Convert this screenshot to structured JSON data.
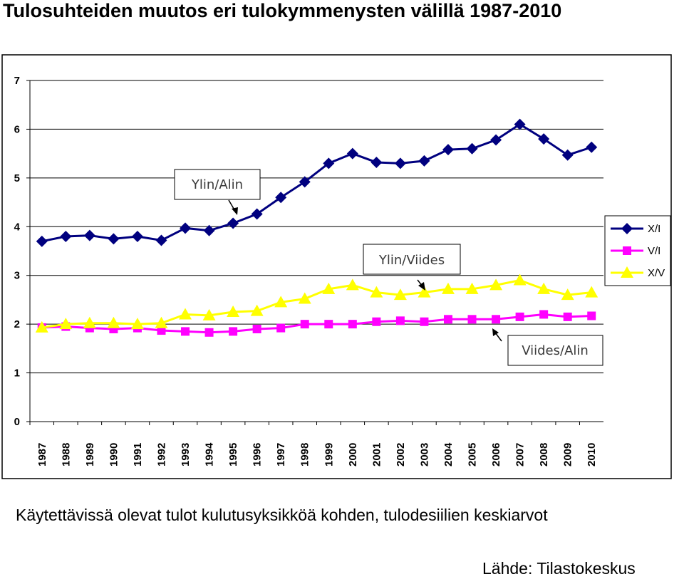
{
  "title": "Tulosuhteiden muutos eri tulokymmenysten välillä 1987-2010",
  "caption": "Käytettävissä olevat tulot kulutusyksikköä kohden, tulodesiilien keskiarvot",
  "source": "Lähde: Tilastokeskus",
  "chart_data": {
    "type": "line",
    "title": "Tulosuhteiden muutos eri tulokymmenysten välillä 1987-2010",
    "xlabel": "",
    "ylabel": "",
    "ylim": [
      0,
      7
    ],
    "yticks": [
      "0",
      "1",
      "2",
      "3",
      "4",
      "5",
      "6",
      "7"
    ],
    "grid": "horizontal",
    "legend_position": "right",
    "categories": [
      "1987",
      "1988",
      "1989",
      "1990",
      "1991",
      "1992",
      "1993",
      "1994",
      "1995",
      "1996",
      "1997",
      "1998",
      "1999",
      "2000",
      "2001",
      "2002",
      "2003",
      "2004",
      "2005",
      "2006",
      "2007",
      "2008",
      "2009",
      "2010"
    ],
    "series": [
      {
        "name": "X/I",
        "color": "#00007f",
        "marker": "diamond",
        "values": [
          3.7,
          3.8,
          3.82,
          3.75,
          3.8,
          3.72,
          3.97,
          3.92,
          4.07,
          4.26,
          4.6,
          4.92,
          5.3,
          5.5,
          5.32,
          5.3,
          5.35,
          5.58,
          5.6,
          5.78,
          6.1,
          5.8,
          5.47,
          5.63
        ]
      },
      {
        "name": "V/I",
        "color": "#ff00ff",
        "marker": "square",
        "values": [
          1.93,
          1.95,
          1.92,
          1.9,
          1.92,
          1.87,
          1.85,
          1.83,
          1.85,
          1.9,
          1.92,
          2.0,
          2.0,
          2.0,
          2.05,
          2.07,
          2.05,
          2.1,
          2.1,
          2.1,
          2.15,
          2.2,
          2.15,
          2.17
        ]
      },
      {
        "name": "X/V",
        "color": "#ffff00",
        "marker": "triangle",
        "values": [
          1.93,
          2.0,
          2.02,
          2.02,
          2.0,
          2.02,
          2.2,
          2.18,
          2.25,
          2.27,
          2.45,
          2.52,
          2.72,
          2.8,
          2.65,
          2.6,
          2.65,
          2.72,
          2.72,
          2.8,
          2.9,
          2.72,
          2.6,
          2.65
        ]
      }
    ],
    "annotations": [
      "Ylin/Alin",
      "Ylin/Viides",
      "Viides/Alin"
    ]
  }
}
